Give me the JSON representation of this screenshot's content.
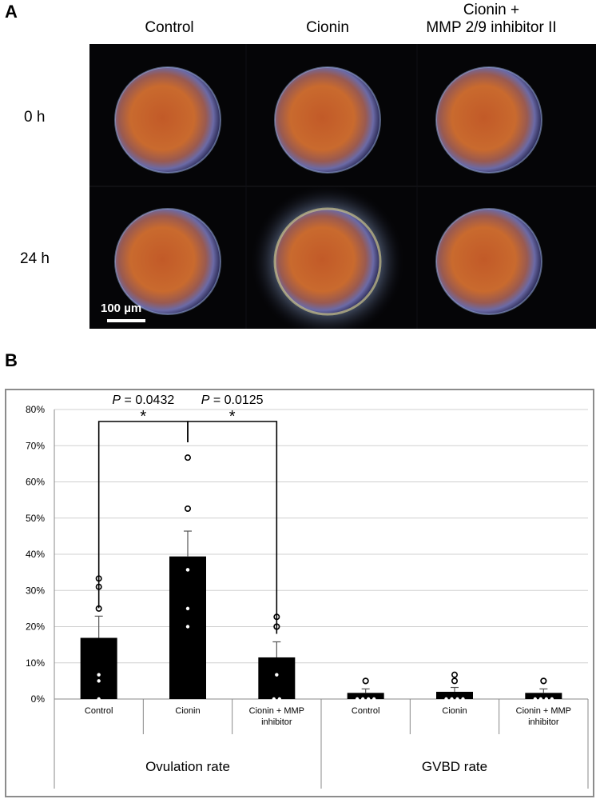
{
  "panel_a": {
    "letter": "A",
    "columns": [
      "Control",
      "Cionin",
      "Cionin +\nMMP 2/9 inhibitor II"
    ],
    "rows": [
      "0 h",
      "24 h"
    ],
    "scale_bar": "100 µm"
  },
  "panel_b": {
    "letter": "B"
  },
  "chart_data": {
    "type": "bar",
    "y_ticks": [
      "0%",
      "10%",
      "20%",
      "30%",
      "40%",
      "50%",
      "60%",
      "70%",
      "80%"
    ],
    "ylim": [
      0,
      80
    ],
    "grid": true,
    "groups": [
      {
        "label": "Ovulation rate",
        "categories": [
          "Control",
          "Cionin",
          "Cionin + MMP inhibitor"
        ],
        "values": [
          16.9,
          39.4,
          11.5
        ],
        "errors": [
          6.0,
          7.0,
          4.3
        ],
        "points": [
          [
            33.3,
            31.0,
            25.0,
            6.7,
            5.0,
            0.0
          ],
          [
            66.7,
            52.6,
            35.7,
            35.7,
            25.0,
            20.0
          ],
          [
            22.7,
            20.0,
            20.0,
            6.7,
            0.0,
            0.0
          ]
        ]
      },
      {
        "label": "GVBD rate",
        "categories": [
          "Control",
          "Cionin",
          "Cionin + MMP inhibitor"
        ],
        "values": [
          1.7,
          2.0,
          1.7
        ],
        "errors": [
          1.1,
          1.2,
          1.1
        ],
        "points": [
          [
            5.0,
            5.0,
            0.0,
            0.0,
            0.0,
            0.0
          ],
          [
            6.7,
            5.0,
            0.0,
            0.0,
            0.0,
            0.0
          ],
          [
            5.0,
            5.0,
            0.0,
            0.0,
            0.0,
            0.0
          ]
        ]
      }
    ],
    "significance": [
      {
        "p_label": "P",
        "p_value": "= 0.0432",
        "star": "*",
        "from": 0,
        "to": 1
      },
      {
        "p_label": "P",
        "p_value": "= 0.0125",
        "star": "*",
        "from": 1,
        "to": 2
      }
    ],
    "bar_color": "#000000"
  }
}
